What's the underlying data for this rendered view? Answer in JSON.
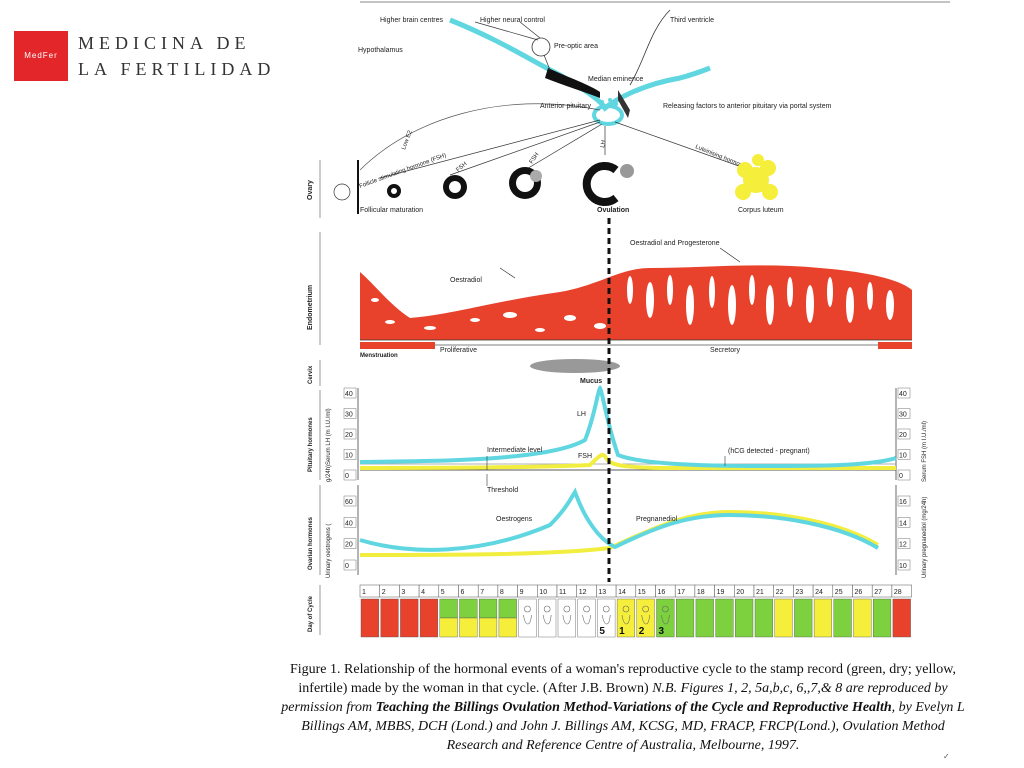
{
  "brand": {
    "logo_text": "MedFer",
    "line1": "MEDICINA DE",
    "line2": "LA FERTILIDAD",
    "color": "#e2262a"
  },
  "brain": {
    "higher_brain_centres": "Higher brain centres",
    "higher_neural_control": "Higher neural control",
    "third_ventricle": "Third ventricle",
    "hypothalamus": "Hypothalamus",
    "pre_optic_area": "Pre-optic area",
    "median_eminence": "Median eminence",
    "anterior_pituitary": "Anterior pituitary",
    "releasing_factors": "Releasing factors to anterior pituitary via portal system",
    "low_e2": "Low E2",
    "fsh": "FSH",
    "lh": "LH",
    "fsh_full": "Follicle stimulating hormone (FSH)",
    "lh_full": "Luteinising hormone (LH)"
  },
  "ovary": {
    "row_label": "Ovary",
    "follicular_maturation": "Follicular maturation",
    "ovulation": "Ovulation",
    "corpus_luteum": "Corpus luteum"
  },
  "endometrium": {
    "row_label": "Endometrium",
    "oestradiol": "Oestradiol",
    "oestradiol_progesterone": "Oestradiol and Progesterone",
    "menstruation": "Menstruation",
    "proliferative": "Proliferative",
    "secretory": "Secretory"
  },
  "cervix": {
    "row_label": "Cervix",
    "mucus": "Mucus"
  },
  "pituitary": {
    "row_label": "Pituitary hormones",
    "y_left_label": "g/24h)Serum LH (m I.U./ml)",
    "y_right_label": "Serum FSH (m I.U./ml)",
    "y_ticks": [
      "0",
      "10",
      "20",
      "30",
      "40"
    ],
    "lh": "LH",
    "fsh": "FSH",
    "intermediate_level": "Intermediate level",
    "threshold": "Threshold",
    "hcg": "(hCG detected - pregnant)"
  },
  "ovarian": {
    "row_label": "Ovarian hormones",
    "y_left_label": "Urinary oestrogens (",
    "y_right_label": "Urinary pregnanediol (mg/24h)",
    "y_ticks_left": [
      "0",
      "20",
      "40",
      "60"
    ],
    "y_ticks_right": [
      "10",
      "12",
      "14",
      "16"
    ],
    "oestrogens": "Oestrogens",
    "pregnanediol": "Pregnanediol"
  },
  "cycle": {
    "row_label": "Day of Cycle",
    "days": [
      "1",
      "2",
      "3",
      "4",
      "5",
      "6",
      "7",
      "8",
      "9",
      "10",
      "11",
      "12",
      "13",
      "14",
      "15",
      "16",
      "17",
      "18",
      "19",
      "20",
      "21",
      "22",
      "23",
      "24",
      "25",
      "26",
      "27",
      "28"
    ],
    "stamps": [
      "red",
      "red",
      "red",
      "red",
      "green-yellow",
      "green-yellow",
      "green-yellow",
      "green-yellow",
      "baby",
      "baby",
      "baby",
      "baby",
      "baby-peak",
      "baby-1",
      "baby-2",
      "baby-3",
      "green",
      "green",
      "green",
      "green",
      "green",
      "yellow",
      "green",
      "yellow",
      "green",
      "yellow",
      "green",
      "red"
    ],
    "stamp_marks": {
      "13": "5",
      "14": "1",
      "15": "2",
      "16": "3"
    },
    "colors": {
      "red": "#e8412c",
      "green": "#7dd13e",
      "yellow": "#f5ee3b"
    }
  },
  "series_colors": {
    "lh_oestrogen": "#5fd6e0",
    "fsh_pregnanediol": "#f2ee40",
    "endometrium": "#e8412c"
  },
  "caption": {
    "part1": "Figure 1. Relationship of the hormonal events of a woman's reproductive cycle to the stamp record (green, dry; yellow, infertile) made by the woman in that cycle. (After J.B. Brown)",
    "part2": "N.B. Figures 1, 2, 5a,b,c, 6,,7,& 8 are reproduced by permission from",
    "part3": "Teaching the Billings Ovulation Method-Variations of the Cycle and Reproductive Health",
    "part4": ", by Evelyn L Billings AM, MBBS, DCH (Lond.) and John J. Billings AM, KCSG, MD, FRACP, FRCP(Lond.), Ovulation Method Research and Reference Centre of Australia, Melbourne, 1997."
  }
}
